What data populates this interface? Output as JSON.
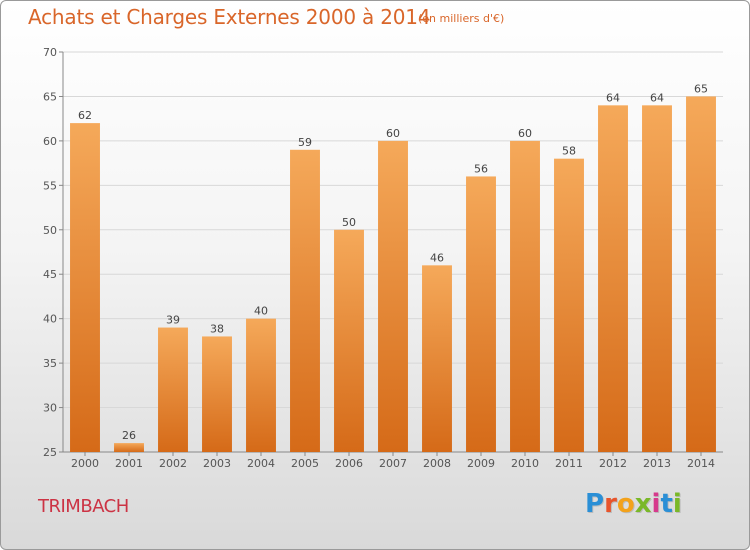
{
  "header": {
    "title": "Achats et Charges Externes 2000 à 2014",
    "subtitle": "(en milliers d'€)"
  },
  "footer": {
    "commune": "TRIMBACH",
    "logo_text": "Proxiti"
  },
  "colors": {
    "title": "#d9662a",
    "bar_top": "#f5a95a",
    "bar_bottom": "#d56a18",
    "commune": "#cc3344",
    "logo_letters": [
      "#2a8fd6",
      "#e8542b",
      "#f3a21b",
      "#7ab828",
      "#d63a8c",
      "#2a8fd6",
      "#7ab828"
    ]
  },
  "chart_data": {
    "type": "bar",
    "title": "Achats et Charges Externes 2000 à 2014",
    "subtitle": "(en milliers d'€)",
    "categories": [
      "2000",
      "2001",
      "2002",
      "2003",
      "2004",
      "2005",
      "2006",
      "2007",
      "2008",
      "2009",
      "2010",
      "2011",
      "2012",
      "2013",
      "2014"
    ],
    "values": [
      62,
      26,
      39,
      38,
      40,
      59,
      50,
      60,
      46,
      56,
      60,
      58,
      64,
      64,
      65
    ],
    "ylim": [
      25,
      70
    ],
    "yticks": [
      25,
      30,
      35,
      40,
      45,
      50,
      55,
      60,
      65,
      70
    ],
    "grid": true,
    "xlabel": "",
    "ylabel": ""
  }
}
